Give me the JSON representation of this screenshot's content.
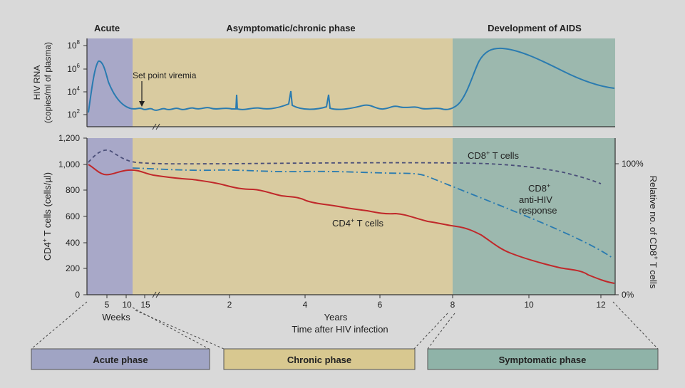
{
  "phases": {
    "acute": "Acute",
    "chronic": "Asymptomatic/chronic phase",
    "aids": "Development of AIDS"
  },
  "top_panel": {
    "ylabel_line1": "HIV RNA",
    "ylabel_line2": "(copies/ml of plasma)",
    "yticks": [
      {
        "base": "10",
        "exp": "8"
      },
      {
        "base": "10",
        "exp": "6"
      },
      {
        "base": "10",
        "exp": "4"
      },
      {
        "base": "10",
        "exp": "2"
      }
    ],
    "annotation": "Set point viremia"
  },
  "bottom_panel": {
    "ylabel_left_main": "CD4",
    "ylabel_left_sup": "+",
    "ylabel_left_rest": " T cells (cells/µl)",
    "ylabel_right_main": "Relative no. of CD8",
    "ylabel_right_sup": "+",
    "ylabel_right_rest": " T cells",
    "yticks_left": [
      "1,200",
      "1,000",
      "800",
      "600",
      "400",
      "200",
      "0"
    ],
    "yticks_right": [
      "100%",
      "0%"
    ],
    "series_labels": {
      "cd8_main": "CD8",
      "cd8_sup": "+",
      "cd8_rest": " T cells",
      "anti_main": "CD8",
      "anti_sup": "+",
      "anti_line2": "anti-HIV",
      "anti_line3": "response",
      "cd4_main": "CD4",
      "cd4_sup": "+",
      "cd4_rest": " T cells"
    }
  },
  "x_axis": {
    "weeks_ticks": [
      "5",
      "10",
      "15"
    ],
    "weeks_label": "Weeks",
    "years_ticks": [
      "2",
      "4",
      "6",
      "8",
      "10",
      "12"
    ],
    "years_label": "Years",
    "caption": "Time after HIV infection"
  },
  "phase_boxes": {
    "acute": "Acute phase",
    "chronic": "Chronic phase",
    "symptomatic": "Symptomatic phase"
  },
  "colors": {
    "acute_band": "#a8a8c8",
    "chronic_band": "#d9cba0",
    "aids_band": "#9cb8ae",
    "viral_line": "#2a7bb0",
    "cd4_line": "#c0282a",
    "cd8_line": "#4a4e78",
    "anti_line": "#2a7bb0",
    "box_acute": "#a0a4c4",
    "box_chronic": "#d8c890",
    "box_symptomatic": "#8fb3a8"
  },
  "chart_data": {
    "type": "line",
    "panels": [
      {
        "name": "viral load",
        "y_scale": "log",
        "ylim": [
          10,
          100000000
        ],
        "series": [
          {
            "points": [
              [
                "0w",
                100
              ],
              [
                "3w",
                2000000
              ],
              [
                "6w",
                5000
              ],
              [
                "10w",
                300
              ],
              [
                "2y",
                300
              ],
              [
                "7.5y",
                300
              ],
              [
                "8.5y",
                500000
              ],
              [
                "9.2y",
                50000000
              ],
              [
                "12.5y",
                15000
              ]
            ]
          }
        ]
      },
      {
        "name": "CD4 and CD8",
        "ylim": [
          0,
          1200
        ],
        "series": [
          {
            "name": "CD4+ T cells",
            "points": [
              [
                "0w",
                1000
              ],
              [
                "5w",
                920
              ],
              [
                "10w",
                960
              ],
              [
                "2y",
                820
              ],
              [
                "4y",
                700
              ],
              [
                "6y",
                620
              ],
              [
                "8y",
                540
              ],
              [
                "9y",
                380
              ],
              [
                "10y",
                280
              ],
              [
                "12y",
                180
              ],
              [
                "12.5y",
                90
              ]
            ]
          },
          {
            "name": "CD8+ T cells",
            "points": [
              [
                "0w",
                92
              ],
              [
                "5w",
                100
              ],
              [
                "10w",
                92
              ],
              [
                "4y",
                90
              ],
              [
                "8y",
                90
              ],
              [
                "10y",
                85
              ],
              [
                "12y",
                77
              ]
            ]
          },
          {
            "name": "CD8+ anti-HIV response",
            "points": [
              [
                "10w",
                86
              ],
              [
                "4y",
                84
              ],
              [
                "7y",
                84
              ],
              [
                "8y",
                73
              ],
              [
                "10y",
                52
              ],
              [
                "12.5y",
                22
              ]
            ]
          }
        ]
      }
    ]
  }
}
